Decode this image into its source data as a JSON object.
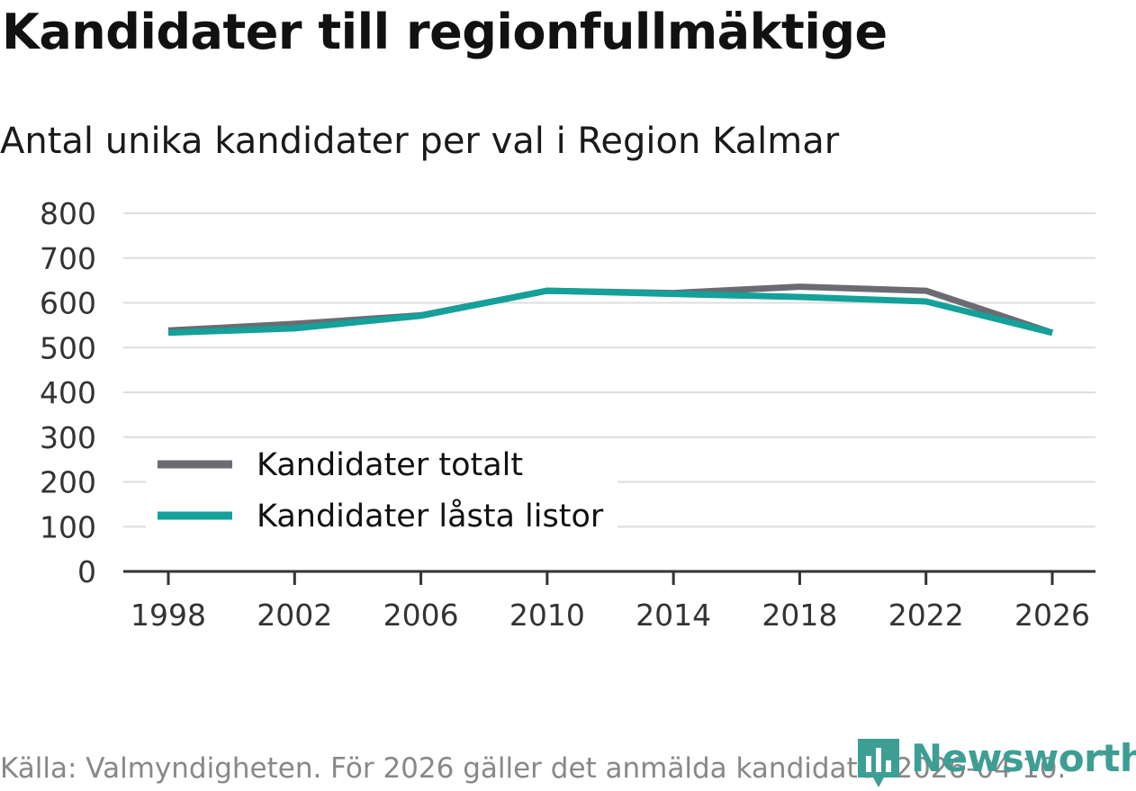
{
  "chart_data": {
    "type": "line",
    "title": "Kandidater till regionfullmäktige",
    "subtitle": "Antal unika kandidater per val i Region Kalmar",
    "categories": [
      "1998",
      "2002",
      "2006",
      "2010",
      "2014",
      "2018",
      "2022",
      "2026"
    ],
    "yticks": [
      "0",
      "100",
      "200",
      "300",
      "400",
      "500",
      "600",
      "700",
      "800"
    ],
    "ylim": [
      0,
      800
    ],
    "series": [
      {
        "name": "Kandidater totalt",
        "color": "#6b6b73",
        "values": [
          538,
          553,
          572,
          627,
          622,
          636,
          627,
          533
        ]
      },
      {
        "name": "Kandidater låsta listor",
        "color": "#13a199",
        "values": [
          533,
          543,
          571,
          627,
          620,
          613,
          603,
          533
        ]
      }
    ],
    "legend_position": "bottom-left",
    "grid": true
  },
  "footer": {
    "source": "Källa: Valmyndigheten. För 2026 gäller det anmälda kandidater 2026-04-10."
  },
  "brand": {
    "name": "Newsworthy",
    "color": "#3d9e94"
  }
}
